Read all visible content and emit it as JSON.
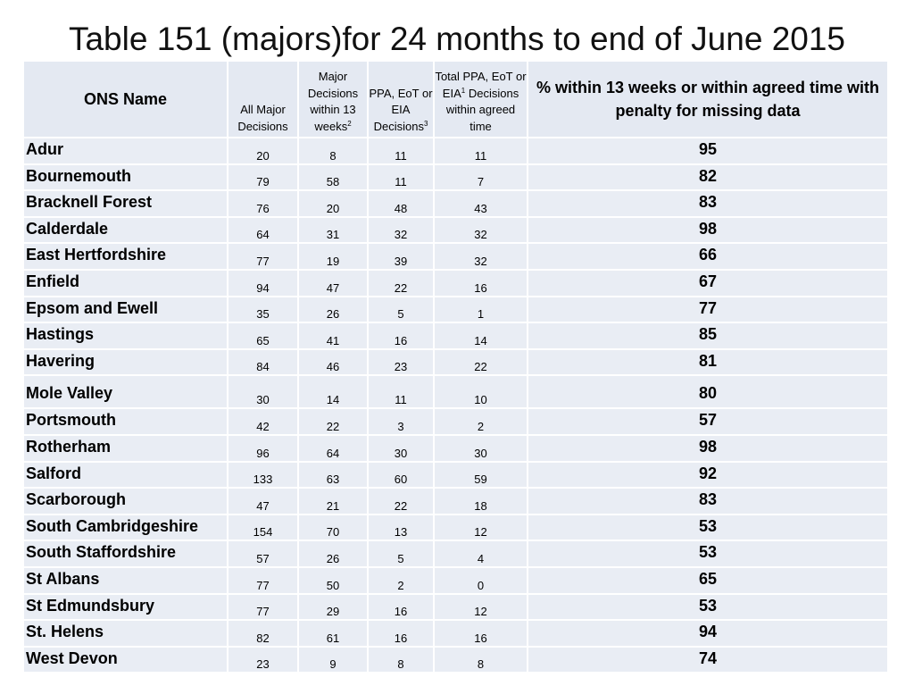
{
  "title": "Table 151 (majors)for 24 months to end of June 2015",
  "headers": {
    "ons_name": "ONS Name",
    "all_major": "All Major Decisions",
    "within13": "Major Decisions within 13 weeks",
    "within13_sup": "2",
    "ppa": "PPA, EoT or EIA Decisions",
    "ppa_sup": "3",
    "total_pre": "Total PPA, EoT or EIA",
    "total_sup": "1",
    "total_post": "Decisions within agreed time",
    "pct": "% within 13 weeks or within agreed time with penalty for missing data"
  },
  "rows": [
    {
      "name": "Adur",
      "all": "20",
      "w13": "8",
      "ppa": "11",
      "total": "11",
      "pct": "95"
    },
    {
      "name": "Bournemouth",
      "all": "79",
      "w13": "58",
      "ppa": "11",
      "total": "7",
      "pct": "82"
    },
    {
      "name": "Bracknell Forest",
      "all": "76",
      "w13": "20",
      "ppa": "48",
      "total": "43",
      "pct": "83"
    },
    {
      "name": "Calderdale",
      "all": "64",
      "w13": "31",
      "ppa": "32",
      "total": "32",
      "pct": "98"
    },
    {
      "name": "East Hertfordshire",
      "all": "77",
      "w13": "19",
      "ppa": "39",
      "total": "32",
      "pct": "66"
    },
    {
      "name": "Enfield",
      "all": "94",
      "w13": "47",
      "ppa": "22",
      "total": "16",
      "pct": "67"
    },
    {
      "name": "Epsom and Ewell",
      "all": "35",
      "w13": "26",
      "ppa": "5",
      "total": "1",
      "pct": "77"
    },
    {
      "name": "Hastings",
      "all": "65",
      "w13": "41",
      "ppa": "16",
      "total": "14",
      "pct": "85"
    },
    {
      "name": "Havering",
      "all": "84",
      "w13": "46",
      "ppa": "23",
      "total": "22",
      "pct": "81"
    },
    {
      "name": "Mole Valley",
      "all": "30",
      "w13": "14",
      "ppa": "11",
      "total": "10",
      "pct": "80"
    },
    {
      "name": "Portsmouth",
      "all": "42",
      "w13": "22",
      "ppa": "3",
      "total": "2",
      "pct": "57"
    },
    {
      "name": "Rotherham",
      "all": "96",
      "w13": "64",
      "ppa": "30",
      "total": "30",
      "pct": "98"
    },
    {
      "name": "Salford",
      "all": "133",
      "w13": "63",
      "ppa": "60",
      "total": "59",
      "pct": "92"
    },
    {
      "name": "Scarborough",
      "all": "47",
      "w13": "21",
      "ppa": "22",
      "total": "18",
      "pct": "83"
    },
    {
      "name": "South Cambridgeshire",
      "all": "154",
      "w13": "70",
      "ppa": "13",
      "total": "12",
      "pct": "53"
    },
    {
      "name": "South Staffordshire",
      "all": "57",
      "w13": "26",
      "ppa": "5",
      "total": "4",
      "pct": "53"
    },
    {
      "name": "St Albans",
      "all": "77",
      "w13": "50",
      "ppa": "2",
      "total": "0",
      "pct": "65"
    },
    {
      "name": "St Edmundsbury",
      "all": "77",
      "w13": "29",
      "ppa": "16",
      "total": "12",
      "pct": "53"
    },
    {
      "name": "St. Helens",
      "all": "82",
      "w13": "61",
      "ppa": "16",
      "total": "16",
      "pct": "94"
    },
    {
      "name": "West Devon",
      "all": "23",
      "w13": "9",
      "ppa": "8",
      "total": "8",
      "pct": "74"
    }
  ]
}
